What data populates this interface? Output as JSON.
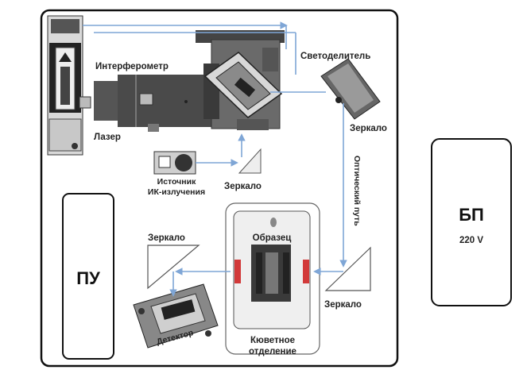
{
  "labels": {
    "interferometer": "Интерферометр",
    "beamsplitter": "Светоделитель",
    "laser": "Лазер",
    "mirror_right": "Зеркало",
    "ir_source_line1": "Источник",
    "ir_source_line2": "ИК-излучения",
    "mirror_center": "Зеркало",
    "optical_path": "Оптический путь",
    "mirror_left": "Зеркало",
    "sample": "Образец",
    "mirror_bottom": "Зеркало",
    "detector": "Детектор",
    "cuvette_line1": "Кюветное",
    "cuvette_line2": "отделение",
    "control_unit": "ПУ",
    "power_unit": "БП",
    "voltage": "220 V"
  },
  "colors": {
    "beam": "#7fa6d6",
    "frame": "#111111",
    "marker_red": "#d23a3a"
  }
}
